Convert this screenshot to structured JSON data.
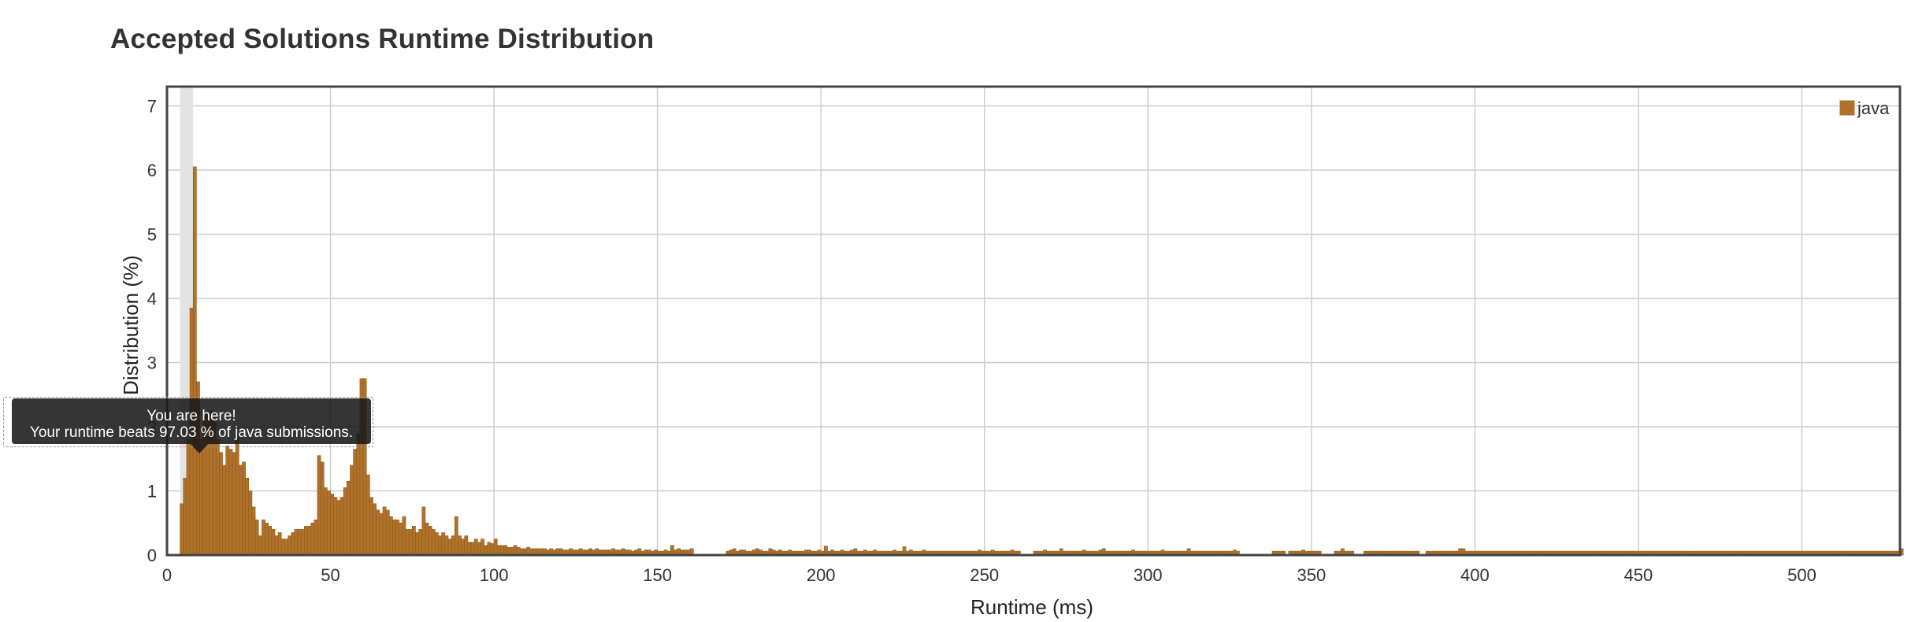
{
  "title": "Accepted Solutions Runtime Distribution",
  "tooltip": {
    "line1": "You are here!",
    "line2": "Your runtime beats 97.03 % of java submissions."
  },
  "colors": {
    "bar": "#b0722a",
    "bar_stroke": "#8f5a1d",
    "grid": "#cccccc",
    "highlight": "#e3e3e3",
    "frame": "#444444"
  },
  "chart_data": {
    "type": "bar",
    "xlabel": "Runtime (ms)",
    "ylabel": "Distribution (%)",
    "xlim": [
      0,
      530
    ],
    "ylim": [
      0,
      7.3
    ],
    "x_ticks": [
      0,
      50,
      100,
      150,
      200,
      250,
      300,
      350,
      400,
      450,
      500
    ],
    "y_ticks": [
      0,
      1,
      2,
      3,
      4,
      5,
      6,
      7
    ],
    "grid": true,
    "legend": {
      "position": "top-right",
      "entries": [
        "java"
      ]
    },
    "highlight_range": [
      4,
      8
    ],
    "series": [
      {
        "name": "java",
        "x": [
          4,
          5,
          6,
          7,
          8,
          9,
          10,
          11,
          12,
          13,
          14,
          15,
          16,
          17,
          18,
          19,
          20,
          21,
          22,
          23,
          24,
          25,
          26,
          27,
          28,
          29,
          30,
          31,
          32,
          33,
          34,
          35,
          36,
          37,
          38,
          39,
          40,
          41,
          42,
          43,
          44,
          45,
          46,
          47,
          48,
          49,
          50,
          51,
          52,
          53,
          54,
          55,
          56,
          57,
          58,
          59,
          60,
          61,
          62,
          63,
          64,
          65,
          66,
          67,
          68,
          69,
          70,
          71,
          72,
          73,
          74,
          75,
          76,
          77,
          78,
          79,
          80,
          81,
          82,
          83,
          84,
          85,
          86,
          87,
          88,
          89,
          90,
          91,
          92,
          93,
          94,
          95,
          96,
          97,
          98,
          99,
          100,
          101,
          102,
          103,
          104,
          105,
          106,
          107,
          108,
          109,
          110,
          111,
          112,
          113,
          114,
          115,
          116,
          117,
          118,
          119,
          120,
          121,
          122,
          123,
          124,
          125,
          126,
          127,
          128,
          129,
          130,
          131,
          132,
          133,
          134,
          135,
          136,
          137,
          138,
          139,
          140,
          141,
          142,
          143,
          144,
          145,
          146,
          147,
          148,
          149,
          150,
          151,
          152,
          153,
          154,
          155,
          156,
          157,
          158,
          159,
          160,
          171,
          172,
          173,
          174,
          175,
          176,
          177,
          178,
          179,
          180,
          181,
          182,
          183,
          184,
          185,
          186,
          187,
          188,
          189,
          190,
          191,
          192,
          193,
          194,
          195,
          196,
          197,
          198,
          199,
          200,
          201,
          202,
          203,
          204,
          205,
          206,
          207,
          208,
          209,
          210,
          211,
          212,
          213,
          214,
          215,
          216,
          217,
          218,
          219,
          220,
          221,
          222,
          223,
          224,
          225,
          226,
          227,
          228,
          229,
          230,
          231,
          232,
          233,
          234,
          235,
          236,
          237,
          238,
          239,
          240,
          241,
          242,
          243,
          244,
          245,
          246,
          247,
          248,
          249,
          250,
          251,
          252,
          253,
          254,
          255,
          256,
          257,
          258,
          259,
          260,
          265,
          266,
          267,
          268,
          269,
          270,
          271,
          272,
          273,
          274,
          275,
          276,
          277,
          278,
          279,
          280,
          281,
          282,
          283,
          284,
          285,
          286,
          287,
          288,
          289,
          290,
          291,
          292,
          293,
          294,
          295,
          296,
          297,
          298,
          299,
          300,
          301,
          302,
          303,
          304,
          305,
          306,
          307,
          308,
          309,
          310,
          311,
          312,
          313,
          314,
          315,
          316,
          317,
          318,
          319,
          320,
          321,
          322,
          323,
          324,
          325,
          326,
          327,
          338,
          339,
          340,
          341,
          343,
          344,
          345,
          346,
          347,
          348,
          349,
          350,
          351,
          352,
          357,
          358,
          359,
          360,
          361,
          362,
          366,
          367,
          368,
          369,
          370,
          371,
          372,
          373,
          374,
          375,
          376,
          377,
          378,
          379,
          380,
          381,
          382,
          385,
          386,
          387,
          388,
          389,
          390,
          391,
          392,
          393,
          394,
          395,
          396,
          397,
          398,
          399,
          400,
          401,
          402,
          403,
          404,
          405,
          406,
          407,
          408,
          409,
          410,
          411,
          412,
          413,
          414,
          415,
          416,
          417,
          418,
          419,
          420,
          421,
          422,
          423,
          424,
          425,
          426,
          427,
          428,
          429,
          430,
          431,
          432,
          433,
          434,
          435,
          436,
          437,
          438,
          439,
          440,
          441,
          442,
          443,
          444,
          445,
          446,
          447,
          448,
          449,
          450,
          451,
          452,
          453,
          454,
          455,
          456,
          457,
          458,
          459,
          460,
          461,
          462,
          463,
          464,
          465,
          466,
          467,
          468,
          469,
          470,
          471,
          472,
          473,
          474,
          475,
          476,
          477,
          478,
          479,
          480,
          481,
          482,
          483,
          484,
          485,
          486,
          487,
          488,
          489,
          490,
          491,
          492,
          493,
          494,
          495,
          496,
          497,
          498,
          499,
          500,
          501,
          502,
          503,
          504,
          505,
          506,
          507,
          508,
          509,
          510,
          511,
          512,
          513,
          514,
          515,
          516,
          517,
          518,
          519,
          520,
          521,
          522,
          523,
          524,
          525,
          526,
          527,
          528,
          529,
          530
        ],
        "values": [
          0.8,
          1.2,
          1.8,
          3.85,
          6.05,
          2.7,
          1.8,
          2.2,
          2.2,
          2.25,
          2.1,
          1.8,
          1.6,
          1.4,
          1.7,
          1.65,
          1.6,
          1.9,
          1.4,
          1.45,
          1.2,
          1.0,
          0.75,
          0.55,
          0.3,
          0.55,
          0.5,
          0.45,
          0.4,
          0.3,
          0.35,
          0.25,
          0.25,
          0.3,
          0.35,
          0.4,
          0.4,
          0.4,
          0.45,
          0.45,
          0.5,
          0.55,
          1.55,
          1.45,
          1.05,
          1.0,
          0.95,
          0.9,
          0.85,
          0.9,
          1.05,
          1.15,
          1.4,
          1.65,
          1.9,
          2.75,
          2.75,
          1.25,
          0.9,
          0.8,
          0.7,
          0.65,
          0.75,
          0.7,
          0.6,
          0.55,
          0.55,
          0.5,
          0.6,
          0.4,
          0.4,
          0.45,
          0.35,
          0.4,
          0.75,
          0.5,
          0.45,
          0.4,
          0.35,
          0.3,
          0.35,
          0.3,
          0.25,
          0.3,
          0.6,
          0.3,
          0.25,
          0.3,
          0.2,
          0.2,
          0.25,
          0.2,
          0.25,
          0.15,
          0.2,
          0.18,
          0.25,
          0.15,
          0.15,
          0.15,
          0.12,
          0.12,
          0.15,
          0.12,
          0.1,
          0.1,
          0.12,
          0.1,
          0.1,
          0.1,
          0.1,
          0.1,
          0.08,
          0.1,
          0.08,
          0.1,
          0.1,
          0.08,
          0.08,
          0.1,
          0.08,
          0.08,
          0.1,
          0.08,
          0.08,
          0.1,
          0.08,
          0.1,
          0.08,
          0.08,
          0.08,
          0.08,
          0.1,
          0.08,
          0.08,
          0.1,
          0.08,
          0.08,
          0.06,
          0.08,
          0.1,
          0.06,
          0.08,
          0.08,
          0.06,
          0.08,
          0.06,
          0.06,
          0.08,
          0.06,
          0.15,
          0.08,
          0.1,
          0.08,
          0.08,
          0.08,
          0.1,
          0.06,
          0.08,
          0.1,
          0.06,
          0.08,
          0.08,
          0.06,
          0.06,
          0.08,
          0.1,
          0.08,
          0.06,
          0.06,
          0.1,
          0.08,
          0.06,
          0.08,
          0.06,
          0.06,
          0.08,
          0.06,
          0.06,
          0.06,
          0.06,
          0.08,
          0.08,
          0.06,
          0.06,
          0.08,
          0.06,
          0.14,
          0.06,
          0.08,
          0.06,
          0.06,
          0.08,
          0.06,
          0.06,
          0.08,
          0.1,
          0.06,
          0.06,
          0.08,
          0.06,
          0.06,
          0.08,
          0.06,
          0.06,
          0.06,
          0.06,
          0.06,
          0.08,
          0.06,
          0.06,
          0.13,
          0.06,
          0.08,
          0.06,
          0.06,
          0.06,
          0.08,
          0.06,
          0.06,
          0.06,
          0.06,
          0.06,
          0.06,
          0.06,
          0.06,
          0.06,
          0.06,
          0.06,
          0.06,
          0.06,
          0.06,
          0.06,
          0.06,
          0.08,
          0.06,
          0.06,
          0.06,
          0.08,
          0.06,
          0.06,
          0.06,
          0.06,
          0.06,
          0.08,
          0.06,
          0.06,
          0.06,
          0.06,
          0.06,
          0.08,
          0.06,
          0.06,
          0.06,
          0.06,
          0.1,
          0.06,
          0.06,
          0.06,
          0.06,
          0.06,
          0.06,
          0.08,
          0.06,
          0.06,
          0.06,
          0.06,
          0.08,
          0.1,
          0.06,
          0.06,
          0.06,
          0.06,
          0.06,
          0.06,
          0.06,
          0.06,
          0.08,
          0.06,
          0.06,
          0.06,
          0.06,
          0.06,
          0.06,
          0.06,
          0.06,
          0.08,
          0.06,
          0.06,
          0.06,
          0.06,
          0.06,
          0.06,
          0.06,
          0.1,
          0.06,
          0.06,
          0.06,
          0.06,
          0.06,
          0.06,
          0.06,
          0.06,
          0.06,
          0.06,
          0.06,
          0.06,
          0.06,
          0.08,
          0.06,
          0.06,
          0.06,
          0.06,
          0.06,
          0.06,
          0.06,
          0.06,
          0.06,
          0.08,
          0.06,
          0.06,
          0.06,
          0.06,
          0.06,
          0.06,
          0.06,
          0.1,
          0.06,
          0.06,
          0.06,
          0.06,
          0.06,
          0.06,
          0.06,
          0.06,
          0.06,
          0.06,
          0.06,
          0.06,
          0.06,
          0.06,
          0.06,
          0.06,
          0.06,
          0.06,
          0.06,
          0.06,
          0.06,
          0.06,
          0.06,
          0.06,
          0.06,
          0.06,
          0.06,
          0.06,
          0.06,
          0.06,
          0.1,
          0.1,
          0.06,
          0.06,
          0.06,
          0.06,
          0.06,
          0.06,
          0.06,
          0.06,
          0.06,
          0.06,
          0.06,
          0.06,
          0.06,
          0.06,
          0.06,
          0.06,
          0.06,
          0.06,
          0.06,
          0.06,
          0.06,
          0.06,
          0.06,
          0.06,
          0.06,
          0.06,
          0.06,
          0.06,
          0.06,
          0.06,
          0.06,
          0.06,
          0.06,
          0.06,
          0.06,
          0.06,
          0.06,
          0.06,
          0.06,
          0.06,
          0.06,
          0.06,
          0.06,
          0.06,
          0.06,
          0.06,
          0.06,
          0.06,
          0.06,
          0.06,
          0.06,
          0.06,
          0.06,
          0.06,
          0.06,
          0.06,
          0.06,
          0.06,
          0.06,
          0.06,
          0.06,
          0.06,
          0.06,
          0.06,
          0.06,
          0.06,
          0.06,
          0.06,
          0.06,
          0.06,
          0.06,
          0.06,
          0.06,
          0.06,
          0.06,
          0.06,
          0.06,
          0.06,
          0.06,
          0.06,
          0.06,
          0.06,
          0.06,
          0.06,
          0.06,
          0.06,
          0.06,
          0.06,
          0.06,
          0.06,
          0.06,
          0.06,
          0.06,
          0.06,
          0.06,
          0.06,
          0.06,
          0.06,
          0.06,
          0.06,
          0.06,
          0.06,
          0.06,
          0.06,
          0.06,
          0.06,
          0.06,
          0.06,
          0.06,
          0.06,
          0.06,
          0.06,
          0.06,
          0.06,
          0.06,
          0.06,
          0.06,
          0.06,
          0.06,
          0.06,
          0.06,
          0.06,
          0.06,
          0.06,
          0.06,
          0.06,
          0.06,
          0.06,
          0.06,
          0.06,
          0.06,
          0.06,
          0.06,
          0.1
        ]
      }
    ]
  }
}
